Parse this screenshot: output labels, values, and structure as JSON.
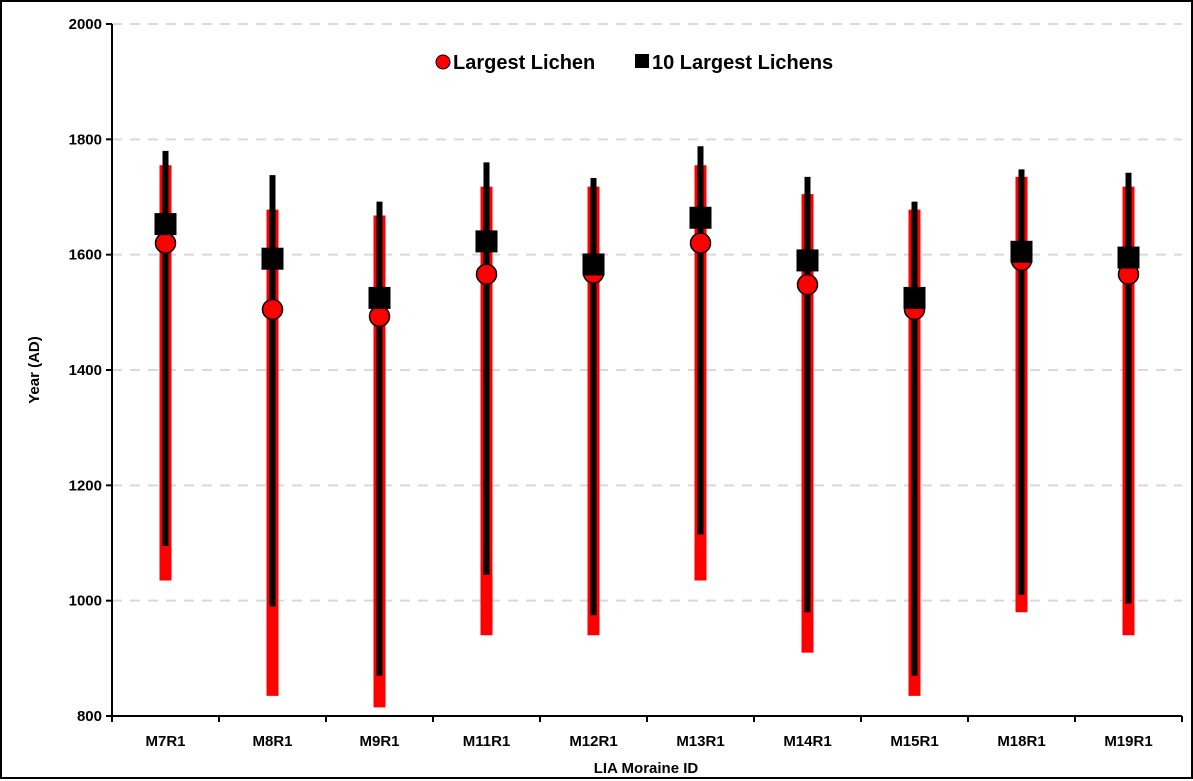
{
  "chart_data": {
    "type": "scatter",
    "title": "",
    "xlabel": "LIA Moraine ID",
    "ylabel": "Year (AD)",
    "categories": [
      "M7R1",
      "M8R1",
      "M9R1",
      "M11R1",
      "M12R1",
      "M13R1",
      "M14R1",
      "M15R1",
      "M18R1",
      "M19R1"
    ],
    "ylim": [
      800,
      2000
    ],
    "yticks": [
      800,
      1000,
      1200,
      1400,
      1600,
      1800,
      2000
    ],
    "grid": "horizontal dashed",
    "legend_position": "top-center",
    "series": [
      {
        "name": "Largest Lichen",
        "marker": "circle",
        "color": "#ff0000",
        "values": [
          1620,
          1505,
          1493,
          1566,
          1568,
          1620,
          1548,
          1505,
          1590,
          1566
        ],
        "error_low": [
          1035,
          835,
          815,
          940,
          940,
          1035,
          910,
          835,
          980,
          940
        ],
        "error_high": [
          1755,
          1678,
          1668,
          1718,
          1718,
          1755,
          1705,
          1678,
          1735,
          1718
        ]
      },
      {
        "name": "10 Largest Lichens",
        "marker": "square",
        "color": "#000000",
        "values": [
          1653,
          1593,
          1525,
          1623,
          1583,
          1664,
          1590,
          1525,
          1605,
          1595
        ],
        "error_low": [
          1095,
          990,
          870,
          1045,
          975,
          1115,
          980,
          870,
          1010,
          995
        ],
        "error_high": [
          1780,
          1738,
          1692,
          1760,
          1733,
          1788,
          1735,
          1692,
          1748,
          1742
        ]
      }
    ]
  }
}
